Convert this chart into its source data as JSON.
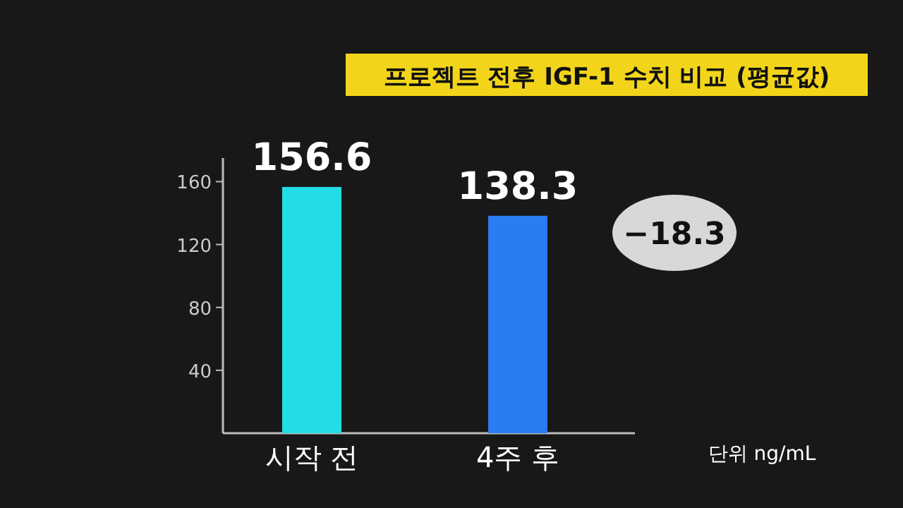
{
  "chart_data": {
    "type": "bar",
    "title": "프로젝트 전후 IGF-1 수치 비교 (평균값)",
    "categories": [
      "시작 전",
      "4주 후"
    ],
    "values": [
      156.6,
      138.3
    ],
    "colors": [
      "#22dde6",
      "#2a7cf2"
    ],
    "ylim": [
      0,
      175
    ],
    "yticks": [
      40,
      80,
      120,
      160
    ],
    "data_labels": true,
    "annotations": [
      "−18.3",
      "단위 ng/mL"
    ]
  }
}
